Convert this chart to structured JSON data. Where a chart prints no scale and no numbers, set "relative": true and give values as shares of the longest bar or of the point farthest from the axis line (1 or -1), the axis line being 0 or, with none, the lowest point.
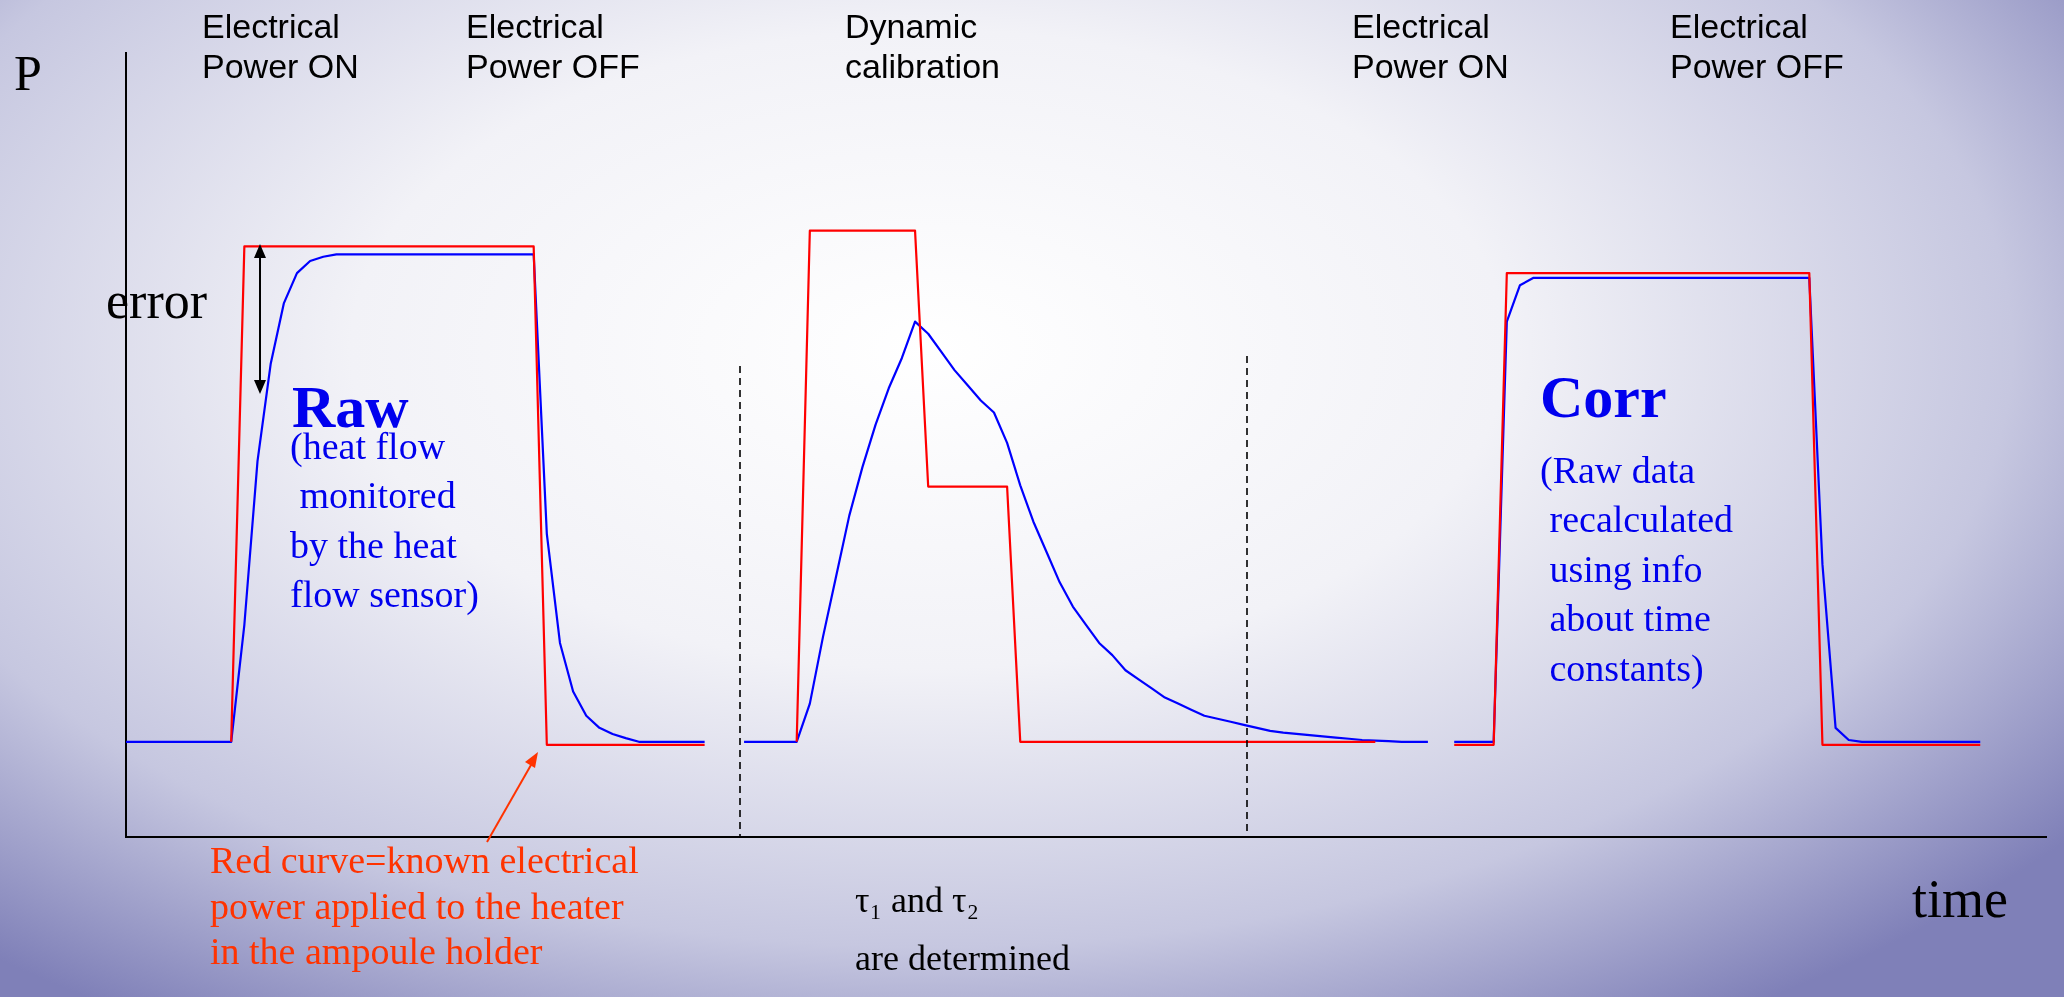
{
  "chart_data": {
    "type": "line",
    "relative": true,
    "grid": false,
    "legend": false,
    "marker": "none",
    "line_style": "solid",
    "ylabel": "P",
    "xlabel": "time",
    "annotations": [
      "Electrical\nPower ON",
      "Electrical\nPower OFF",
      "Dynamic\ncalibration",
      "Electrical\nPower ON",
      "Electrical\nPower OFF",
      "error",
      "Raw",
      "(heat flow\n monitored\nby the heat\nflow sensor)",
      "Corr",
      "(Raw data\n recalculated\n using info\n about time\n constants)",
      "Red curve=known electrical\npower applied to the heater\nin the ampoule holder",
      "τ₁ and τ₂\nare determined"
    ],
    "categories": [
      null,
      null,
      null,
      null,
      null,
      null,
      null,
      null,
      null,
      null,
      null,
      null,
      null,
      null,
      null,
      null,
      null,
      null,
      null,
      null,
      null,
      null,
      null,
      null,
      null,
      null,
      null,
      null,
      null,
      null,
      null,
      null,
      null,
      null,
      null,
      null,
      null,
      null,
      null,
      null,
      null,
      null,
      null,
      null,
      null,
      null,
      null,
      null,
      null,
      null,
      null,
      null,
      null,
      null,
      null,
      null,
      null,
      null,
      null,
      null,
      null,
      null,
      null,
      null,
      null,
      null,
      null,
      null,
      null,
      null,
      null,
      null,
      null,
      null,
      null,
      null,
      null,
      null,
      null,
      null,
      null,
      null,
      null,
      null,
      null,
      null,
      null,
      null,
      null,
      null,
      null,
      null,
      null,
      null,
      null,
      null,
      null,
      null,
      null,
      null,
      null,
      null,
      null,
      null,
      null,
      null,
      null,
      null,
      null,
      null,
      null,
      null,
      null,
      null,
      null,
      null,
      null,
      null,
      null,
      null,
      null,
      null,
      null,
      null,
      null,
      null,
      null,
      null,
      null,
      null,
      null,
      null,
      null,
      null,
      null,
      null,
      null,
      null,
      null,
      null,
      null,
      null,
      null,
      null,
      null,
      null,
      null
    ],
    "series": [
      {
        "color": "#ff0000",
        "values": [
          null,
          null,
          null,
          null,
          null,
          null,
          null,
          null,
          0.157,
          0.974,
          0.974,
          0.974,
          0.974,
          0.974,
          0.974,
          0.974,
          0.974,
          0.974,
          0.974,
          0.974,
          0.974,
          0.974,
          0.974,
          0.974,
          0.974,
          0.974,
          0.974,
          0.974,
          0.974,
          0.974,
          0.974,
          0.974,
          0.152,
          0.152,
          0.152,
          0.152,
          0.152,
          0.152,
          0.152,
          0.152,
          0.152,
          0.152,
          0.152,
          0.152,
          0.152,
          null,
          null,
          null,
          null,
          null,
          null,
          null,
          null,
          null,
          null,
          null,
          null,
          null,
          null,
          null,
          null,
          null,
          null,
          null,
          null,
          null,
          null,
          null,
          null,
          null,
          null,
          null,
          null,
          null,
          null,
          null,
          null,
          null,
          null,
          null,
          null,
          null,
          null,
          null,
          null,
          null,
          null,
          null,
          null,
          null,
          null,
          null,
          null,
          null,
          null,
          null,
          null,
          null,
          null,
          null,
          null,
          null,
          null,
          null,
          null,
          null,
          null,
          null,
          null,
          null,
          null,
          null,
          null,
          null,
          null,
          null,
          null,
          null,
          null,
          null,
          null,
          null,
          null,
          null,
          null,
          null,
          null,
          null,
          null,
          null,
          null,
          null,
          null,
          null,
          null,
          null,
          null,
          null,
          null,
          null,
          null,
          null,
          null,
          null,
          null,
          null,
          null
        ]
      },
      {
        "color": "#0000ff",
        "values": [
          0.157,
          0.157,
          0.157,
          0.157,
          0.157,
          0.157,
          0.157,
          0.157,
          0.157,
          0.35,
          0.62,
          0.78,
          0.88,
          0.93,
          0.95,
          0.957,
          0.961,
          0.961,
          0.961,
          0.961,
          0.961,
          0.961,
          0.961,
          0.961,
          0.961,
          0.961,
          0.961,
          0.961,
          0.961,
          0.961,
          0.961,
          0.961,
          0.5,
          0.32,
          0.24,
          0.2,
          0.18,
          0.17,
          0.163,
          0.157,
          0.157,
          0.157,
          0.157,
          0.157,
          0.157,
          null,
          null,
          null,
          null,
          null,
          null,
          null,
          null,
          null,
          null,
          null,
          null,
          null,
          null,
          null,
          null,
          null,
          null,
          null,
          null,
          null,
          null,
          null,
          null,
          null,
          null,
          null,
          null,
          null,
          null,
          null,
          null,
          null,
          null,
          null,
          null,
          null,
          null,
          null,
          null,
          null,
          null,
          null,
          null,
          null,
          null,
          null,
          null,
          null,
          null,
          null,
          null,
          null,
          null,
          null,
          null,
          null,
          null,
          null,
          null,
          null,
          null,
          null,
          null,
          null,
          null,
          null,
          null,
          null,
          null,
          null,
          null,
          null,
          null,
          null,
          null,
          null,
          null,
          null,
          null,
          null,
          null,
          null,
          null,
          null,
          null,
          null,
          null,
          null,
          null,
          null,
          null,
          null,
          null,
          null,
          null,
          null,
          null,
          null,
          null,
          null,
          null
        ]
      },
      {
        "color": "#ff0000",
        "values": [
          null,
          null,
          null,
          null,
          null,
          null,
          null,
          null,
          null,
          null,
          null,
          null,
          null,
          null,
          null,
          null,
          null,
          null,
          null,
          null,
          null,
          null,
          null,
          null,
          null,
          null,
          null,
          null,
          null,
          null,
          null,
          null,
          null,
          null,
          null,
          null,
          null,
          null,
          null,
          null,
          null,
          null,
          null,
          null,
          null,
          null,
          null,
          null,
          null,
          null,
          null,
          0.157,
          1.0,
          1.0,
          1.0,
          1.0,
          1.0,
          1.0,
          1.0,
          1.0,
          1.0,
          0.578,
          0.578,
          0.578,
          0.578,
          0.578,
          0.578,
          0.578,
          0.157,
          0.157,
          0.157,
          0.157,
          0.157,
          0.157,
          0.157,
          0.157,
          0.157,
          0.157,
          0.157,
          0.157,
          0.157,
          0.157,
          0.157,
          0.157,
          0.157,
          0.157,
          0.157,
          0.157,
          0.157,
          0.157,
          0.157,
          0.157,
          0.157,
          0.157,
          0.157,
          0.157,
          null,
          null,
          null,
          null,
          null,
          null,
          null,
          null,
          null,
          null,
          null,
          null,
          null,
          null,
          null,
          null,
          null,
          null,
          null,
          null,
          null,
          null,
          null,
          null,
          null,
          null,
          null,
          null,
          null,
          null,
          null,
          null,
          null,
          null,
          null,
          null,
          null,
          null,
          null,
          null,
          null,
          null,
          null,
          null,
          null,
          null,
          null,
          null,
          null,
          null,
          null
        ]
      },
      {
        "color": "#0000ff",
        "values": [
          null,
          null,
          null,
          null,
          null,
          null,
          null,
          null,
          null,
          null,
          null,
          null,
          null,
          null,
          null,
          null,
          null,
          null,
          null,
          null,
          null,
          null,
          null,
          null,
          null,
          null,
          null,
          null,
          null,
          null,
          null,
          null,
          null,
          null,
          null,
          null,
          null,
          null,
          null,
          null,
          null,
          null,
          null,
          null,
          null,
          null,
          null,
          0.157,
          0.157,
          0.157,
          0.157,
          0.157,
          0.22,
          0.33,
          0.43,
          0.53,
          0.61,
          0.68,
          0.74,
          0.79,
          0.85,
          0.83,
          0.8,
          0.77,
          0.745,
          0.72,
          0.7,
          0.65,
          0.58,
          0.52,
          0.47,
          0.42,
          0.38,
          0.35,
          0.32,
          0.3,
          0.275,
          0.26,
          0.245,
          0.23,
          0.22,
          0.21,
          0.2,
          0.195,
          0.19,
          0.185,
          0.18,
          0.175,
          0.172,
          0.17,
          0.168,
          0.166,
          0.164,
          0.162,
          0.16,
          0.159,
          0.158,
          0.157,
          0.157,
          0.157,
          null,
          null,
          null,
          null,
          null,
          null,
          null,
          null,
          null,
          null,
          null,
          null,
          null,
          null,
          null,
          null,
          null,
          null,
          null,
          null,
          null,
          null,
          null,
          null,
          null,
          null,
          null,
          null,
          null,
          null,
          null,
          null,
          null,
          null,
          null,
          null,
          null,
          null,
          null,
          null,
          null,
          null,
          null,
          null,
          null,
          null,
          null
        ]
      },
      {
        "color": "#ff0000",
        "values": [
          null,
          null,
          null,
          null,
          null,
          null,
          null,
          null,
          null,
          null,
          null,
          null,
          null,
          null,
          null,
          null,
          null,
          null,
          null,
          null,
          null,
          null,
          null,
          null,
          null,
          null,
          null,
          null,
          null,
          null,
          null,
          null,
          null,
          null,
          null,
          null,
          null,
          null,
          null,
          null,
          null,
          null,
          null,
          null,
          null,
          null,
          null,
          null,
          null,
          null,
          null,
          null,
          null,
          null,
          null,
          null,
          null,
          null,
          null,
          null,
          null,
          null,
          null,
          null,
          null,
          null,
          null,
          null,
          null,
          null,
          null,
          null,
          null,
          null,
          null,
          null,
          null,
          null,
          null,
          null,
          null,
          null,
          null,
          null,
          null,
          null,
          null,
          null,
          null,
          null,
          null,
          null,
          null,
          null,
          null,
          null,
          null,
          null,
          null,
          null,
          null,
          0.152,
          0.152,
          0.152,
          0.152,
          0.93,
          0.93,
          0.93,
          0.93,
          0.93,
          0.93,
          0.93,
          0.93,
          0.93,
          0.93,
          0.93,
          0.93,
          0.93,
          0.93,
          0.93,
          0.93,
          0.93,
          0.93,
          0.93,
          0.93,
          0.93,
          0.93,
          0.93,
          0.93,
          0.152,
          0.152,
          0.152,
          0.152,
          0.152,
          0.152,
          0.152,
          0.152,
          0.152,
          0.152,
          0.152,
          0.152,
          0.152,
          null,
          null,
          null,
          null,
          null
        ]
      },
      {
        "color": "#0000ff",
        "values": [
          null,
          null,
          null,
          null,
          null,
          null,
          null,
          null,
          null,
          null,
          null,
          null,
          null,
          null,
          null,
          null,
          null,
          null,
          null,
          null,
          null,
          null,
          null,
          null,
          null,
          null,
          null,
          null,
          null,
          null,
          null,
          null,
          null,
          null,
          null,
          null,
          null,
          null,
          null,
          null,
          null,
          null,
          null,
          null,
          null,
          null,
          null,
          null,
          null,
          null,
          null,
          null,
          null,
          null,
          null,
          null,
          null,
          null,
          null,
          null,
          null,
          null,
          null,
          null,
          null,
          null,
          null,
          null,
          null,
          null,
          null,
          null,
          null,
          null,
          null,
          null,
          null,
          null,
          null,
          null,
          null,
          null,
          null,
          null,
          null,
          null,
          null,
          null,
          null,
          null,
          null,
          null,
          null,
          null,
          null,
          null,
          null,
          null,
          null,
          null,
          null,
          0.157,
          0.157,
          0.157,
          0.157,
          0.85,
          0.91,
          0.922,
          0.922,
          0.922,
          0.922,
          0.922,
          0.922,
          0.922,
          0.922,
          0.922,
          0.922,
          0.922,
          0.922,
          0.922,
          0.922,
          0.922,
          0.922,
          0.922,
          0.922,
          0.922,
          0.922,
          0.922,
          0.922,
          0.45,
          0.18,
          0.16,
          0.157,
          0.157,
          0.157,
          0.157,
          0.157,
          0.157,
          0.157,
          0.157,
          0.157,
          0.157,
          null,
          null,
          null,
          null,
          null
        ]
      }
    ]
  }
}
